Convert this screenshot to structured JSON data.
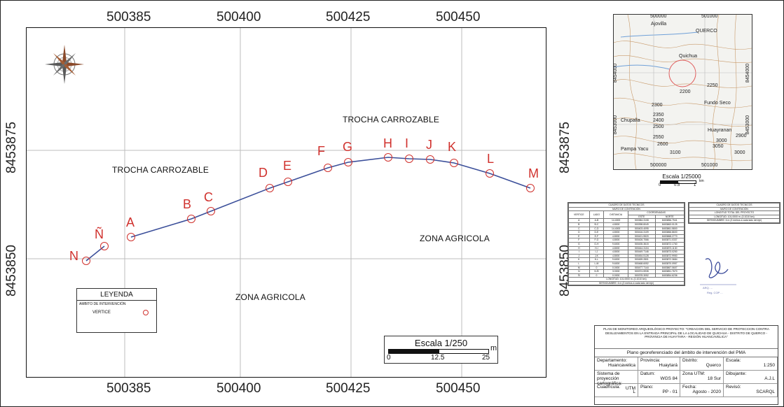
{
  "main_map": {
    "coords_top": [
      "500385",
      "500400",
      "500425",
      "500450"
    ],
    "coords_bottom": [
      "500385",
      "500400",
      "500425",
      "500450"
    ],
    "coords_left": [
      "8453875",
      "8453850"
    ],
    "coords_right": [
      "8453875",
      "8453850"
    ],
    "labels": {
      "trocha_top": "TROCHA CARROZABLE",
      "trocha_left": "TROCHA CARROZABLE",
      "zona_right": "ZONA AGRICOLA",
      "zona_bottom": "ZONA AGRICOLA"
    },
    "vertices": [
      "N",
      "Ñ",
      "A",
      "B",
      "C",
      "D",
      "E",
      "F",
      "G",
      "H",
      "I",
      "J",
      "K",
      "L",
      "M"
    ],
    "colors": {
      "route": "#3b4f9a",
      "vertex": "#d0312d",
      "grid": "#bdbdbd"
    }
  },
  "legend": {
    "title": "LEYENDA",
    "subtitle": "AMBITO DE INTERVENCIÓN",
    "item": "VERTICE"
  },
  "scale_bar": {
    "title": "Escala 1/250",
    "unit": "m",
    "ticks": [
      "0",
      "12.5",
      "25"
    ]
  },
  "location_map": {
    "coords_top": [
      "500000",
      "501000"
    ],
    "coords_bottom": [
      "500000",
      "501000"
    ],
    "coords_left": [
      "8454000",
      "8453000"
    ],
    "coords_right": [
      "8454000",
      "8453000"
    ],
    "places": [
      "Ajovilla",
      "QUERCO",
      "Quichua",
      "Fundo Seco",
      "Chupalla",
      "Huayranan",
      "Pampa Yacu"
    ],
    "contours": [
      "2200",
      "2250",
      "2300",
      "2350",
      "2400",
      "2500",
      "2550",
      "2600",
      "2900",
      "3000",
      "3000",
      "3050",
      "3100"
    ],
    "scale_title": "Escala 1/25000",
    "scale_ticks": [
      "0",
      "0.5",
      "1"
    ],
    "scale_unit": "km"
  },
  "coord_table": {
    "title": "CUADRO DE DATOS TECNICOS",
    "subtitle": "MURO DE CONTENCIÓN",
    "headers": [
      "VERTICE",
      "LADO",
      "DISTANCIA",
      "ESTE",
      "NORTE"
    ],
    "group_header": "COORDENADAS",
    "rows": [
      [
        "A",
        "A-B",
        "14.4000",
        "500384.3108",
        "8453856.7541"
      ],
      [
        "B",
        "B-C",
        "4.8000",
        "500398.8049",
        "8453863.0125"
      ],
      [
        "C",
        "C-D",
        "14.4000",
        "500403.4095",
        "8453861.5800"
      ],
      [
        "D",
        "D-E",
        "4.8000",
        "500416.3109",
        "8453866.8600"
      ],
      [
        "E",
        "E-F",
        "4.8000",
        "500421.5520",
        "8453868.2770"
      ],
      [
        "F",
        "F-G",
        "4.8000",
        "500426.7066",
        "8453871.0337"
      ],
      [
        "G",
        "G-H",
        "9.6000",
        "500435.3615",
        "8453872.1760"
      ],
      [
        "H",
        "H-I",
        "4.8000",
        "500444.3104",
        "8453873.1130"
      ],
      [
        "I",
        "I-J",
        "4.8000",
        "500449.7146",
        "8453873.0250"
      ],
      [
        "J",
        "J-K",
        "4.8000",
        "500454.5128",
        "8453872.9950"
      ],
      [
        "K",
        "K-L",
        "9.6000",
        "500459.2801",
        "8453872.3684"
      ],
      [
        "L",
        "L-M",
        "9.6000",
        "500468.6052",
        "8453870.0957"
      ],
      [
        "M",
        "0",
        "0.0000",
        "500477.7144",
        "8453867.0607"
      ],
      [
        "N",
        "N-Ñ",
        "3.0000",
        "500374.5935",
        "8453851.7670"
      ],
      [
        "Ñ",
        "0",
        "0.0000",
        "500378.3052",
        "8453854.6236"
      ]
    ],
    "footer1": "LONGITUD: 101.0000 m. (0.1010 km)",
    "footer2": "SERVIDUMBRE: 6 m (3 metros a cada lado del eje)"
  },
  "summary_table": {
    "title": "CUADRO DE DATOS TECNICOS",
    "subtitle": "MURO DE CONTENCIÓN",
    "line1": "LONGITUD TOTAL DEL PROYECTO",
    "line2": "LONGITUD: 101.0000 m. (0.1010 km)",
    "line3": "SERVIDUMBRE: 6 m (3 metros a cada lado del eje)"
  },
  "title_block": {
    "project": "PLAN DE MONITOREO ARQUEOLÓGICO PROYECTO: \"CREACION DEL SERVICIO DE PROTECCION CONTRA DESLIZAMIENTOS EN LA ENTRADA PRINCIPAL DE LA LOCALIDAD DE QUICHUA - DISTRITO DE QUERCO - PROVINCIA DE HUAYTARA - REGIÓN HUANCAVELICA\"",
    "plan_title": "Plano georeferenciado del ámbito de intervención del PMA",
    "cells": [
      {
        "k": "Departamento:",
        "v": "Huancavelica"
      },
      {
        "k": "Provincia:",
        "v": "Huaytará"
      },
      {
        "k": "Distrito:",
        "v": "Querco"
      },
      {
        "k": "Escala:",
        "v": "1:250"
      },
      {
        "k": "Sistema de proyección cartográfica:",
        "v": "UTM"
      },
      {
        "k": "Datum:",
        "v": "WGS 84"
      },
      {
        "k": "Zona UTM:",
        "v": "18 Sur"
      },
      {
        "k": "Dibujante:",
        "v": "A.J.L"
      },
      {
        "k": "Cuadrícula:",
        "v": "L"
      },
      {
        "k": "Plano:",
        "v": "PP - 01"
      },
      {
        "k": "Fecha:",
        "v": "Agosto - 2020"
      },
      {
        "k": "Revisó:",
        "v": "SCARQL"
      }
    ]
  },
  "signature": {
    "line1": "ARQ. ...",
    "line2": "Reg. COP ..."
  }
}
